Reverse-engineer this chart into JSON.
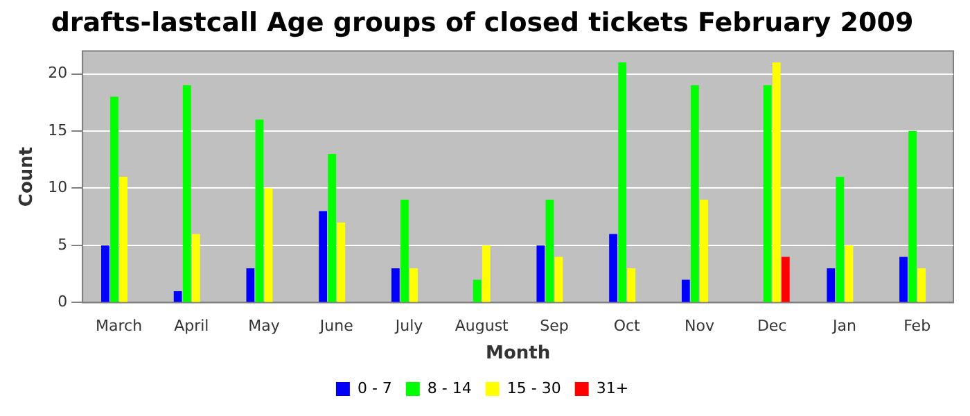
{
  "chart_data": {
    "type": "bar",
    "title": "drafts-lastcall Age groups of closed tickets February 2009",
    "xlabel": "Month",
    "ylabel": "Count",
    "categories": [
      "March",
      "April",
      "May",
      "June",
      "July",
      "August",
      "Sep",
      "Oct",
      "Nov",
      "Dec",
      "Jan",
      "Feb"
    ],
    "series": [
      {
        "name": "0 - 7",
        "color": "#0000ff",
        "values": [
          5,
          1,
          3,
          8,
          3,
          0,
          5,
          6,
          2,
          0,
          3,
          4
        ]
      },
      {
        "name": "8 - 14",
        "color": "#00ff00",
        "values": [
          18,
          19,
          16,
          13,
          9,
          2,
          9,
          21,
          19,
          19,
          11,
          15
        ]
      },
      {
        "name": "15 - 30",
        "color": "#ffff00",
        "values": [
          11,
          6,
          10,
          7,
          3,
          5,
          4,
          3,
          9,
          21,
          5,
          3
        ]
      },
      {
        "name": "31+",
        "color": "#ff0000",
        "values": [
          0,
          0,
          0,
          0,
          0,
          0,
          0,
          0,
          0,
          4,
          0,
          0
        ]
      }
    ],
    "ylim": [
      0,
      22
    ],
    "yticks": [
      0,
      5,
      10,
      15,
      20
    ],
    "grid": "y",
    "legend": "bottom"
  }
}
